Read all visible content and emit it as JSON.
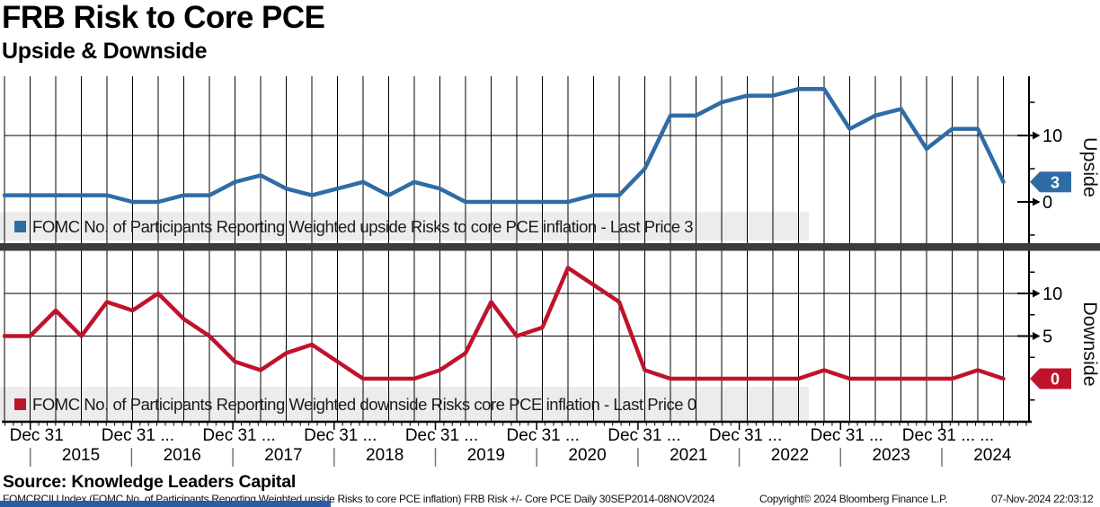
{
  "chart_data": {
    "type": "line",
    "title": "FRB Risk to Core PCE",
    "subtitle": "Upside & Downside",
    "categories": [
      "Sep 2014",
      "Dec 2014",
      "Mar 2015",
      "Jun 2015",
      "Sep 2015",
      "Dec 2015",
      "Mar 2016",
      "Jun 2016",
      "Sep 2016",
      "Dec 2016",
      "Mar 2017",
      "Jun 2017",
      "Sep 2017",
      "Dec 2017",
      "Mar 2018",
      "Jun 2018",
      "Sep 2018",
      "Dec 2018",
      "Mar 2019",
      "Jun 2019",
      "Sep 2019",
      "Dec 2019",
      "Jun 2020",
      "Sep 2020",
      "Dec 2020",
      "Mar 2021",
      "Jun 2021",
      "Sep 2021",
      "Dec 2021",
      "Mar 2022",
      "Jun 2022",
      "Sep 2022",
      "Dec 2022",
      "Mar 2023",
      "Jun 2023",
      "Sep 2023",
      "Dec 2023",
      "Mar 2024",
      "Jun 2024",
      "Sep 2024"
    ],
    "series": [
      {
        "name": "FOMC No. of Participants Reporting Weighted upside Risks to core PCE inflation",
        "legend_label": "FOMC No. of Participants Reporting Weighted upside Risks to core PCE inflation - Last Price 3",
        "panel": "Upside",
        "color": "#2f6ca5",
        "last_price": 3,
        "values": [
          1,
          1,
          1,
          1,
          1,
          0,
          0,
          1,
          1,
          3,
          4,
          2,
          1,
          2,
          3,
          1,
          3,
          2,
          0,
          0,
          0,
          0,
          0,
          1,
          1,
          5,
          13,
          13,
          15,
          16,
          16,
          17,
          17,
          11,
          13,
          14,
          8,
          11,
          11,
          3
        ]
      },
      {
        "name": "FOMC No. of Participants Reporting Weighted downside Risks core PCE inflation",
        "legend_label": "FOMC No. of Participants Reporting Weighted downside Risks core PCE inflation - Last Price 0",
        "panel": "Downside",
        "color": "#bf132c",
        "last_price": 0,
        "values": [
          5,
          5,
          8,
          5,
          9,
          8,
          10,
          7,
          5,
          2,
          1,
          3,
          4,
          2,
          0,
          0,
          0,
          1,
          3,
          9,
          5,
          6,
          13,
          11,
          9,
          1,
          0,
          0,
          0,
          0,
          0,
          0,
          1,
          0,
          0,
          0,
          0,
          0,
          1,
          0
        ]
      }
    ],
    "panels": [
      {
        "axis_label": "Upside",
        "yticks_labeled": [
          10,
          0
        ],
        "yticks_minor": [
          15,
          5,
          -5
        ],
        "gridlines": [
          10
        ],
        "ylim": [
          -6.1,
          18.9
        ]
      },
      {
        "axis_label": "Downside",
        "yticks_labeled": [
          10,
          5
        ],
        "yticks_minor": [
          12.5,
          7.5,
          2.5,
          -2.5
        ],
        "gridlines": [
          10,
          5
        ],
        "ylim": [
          -5.1,
          14.7
        ]
      }
    ],
    "xaxis": {
      "tick_label": "Dec 31",
      "tick_suffix": "...",
      "years": [
        "2015",
        "2016",
        "2017",
        "2018",
        "2019",
        "2020",
        "2021",
        "2022",
        "2023",
        "2024"
      ]
    },
    "legend_position": "bottom-of-each-panel",
    "grid": "on"
  },
  "footer": {
    "source": "Source: Knowledge Leaders Capital",
    "disclaimer": "FOMCRCIU Index (FOMC No. of Participants Reporting Weighted upside Risks to core PCE inflation) FRB Risk +/- Core PCE  Daily 30SEP2014-08NOV2024",
    "copyright": "Copyright© 2024 Bloomberg Finance L.P.",
    "timestamp": "07-Nov-2024 22:03:12"
  }
}
